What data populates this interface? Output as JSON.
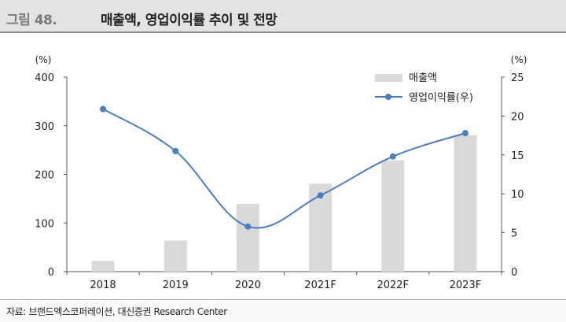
{
  "figure": {
    "label": "그림 48.",
    "title": "매출액, 영업이익률 추이 및 전망"
  },
  "source": "자료: 브랜드엑스코퍼레이션, 대신증권 Research Center",
  "chart_data": {
    "type": "bar",
    "categories": [
      "2018",
      "2019",
      "2020",
      "2021F",
      "2022F",
      "2023F"
    ],
    "series": [
      {
        "name": "매출액",
        "type": "bar",
        "axis": "left",
        "color": "#d9d9d9",
        "values": [
          22,
          64,
          139,
          181,
          229,
          281
        ]
      },
      {
        "name": "영업이익률(우)",
        "type": "line",
        "axis": "right",
        "color": "#4a7ec2",
        "values": [
          20.9,
          15.5,
          5.8,
          9.8,
          14.8,
          17.8
        ]
      }
    ],
    "y_left": {
      "unit": "(%)",
      "ylim": [
        0,
        400
      ],
      "ticks": [
        0,
        100,
        200,
        300,
        400
      ]
    },
    "y_right": {
      "unit": "(%)",
      "ylim": [
        0,
        25
      ],
      "ticks": [
        0,
        5,
        10,
        15,
        20,
        25
      ]
    },
    "legend": "top-right",
    "grid": false
  }
}
